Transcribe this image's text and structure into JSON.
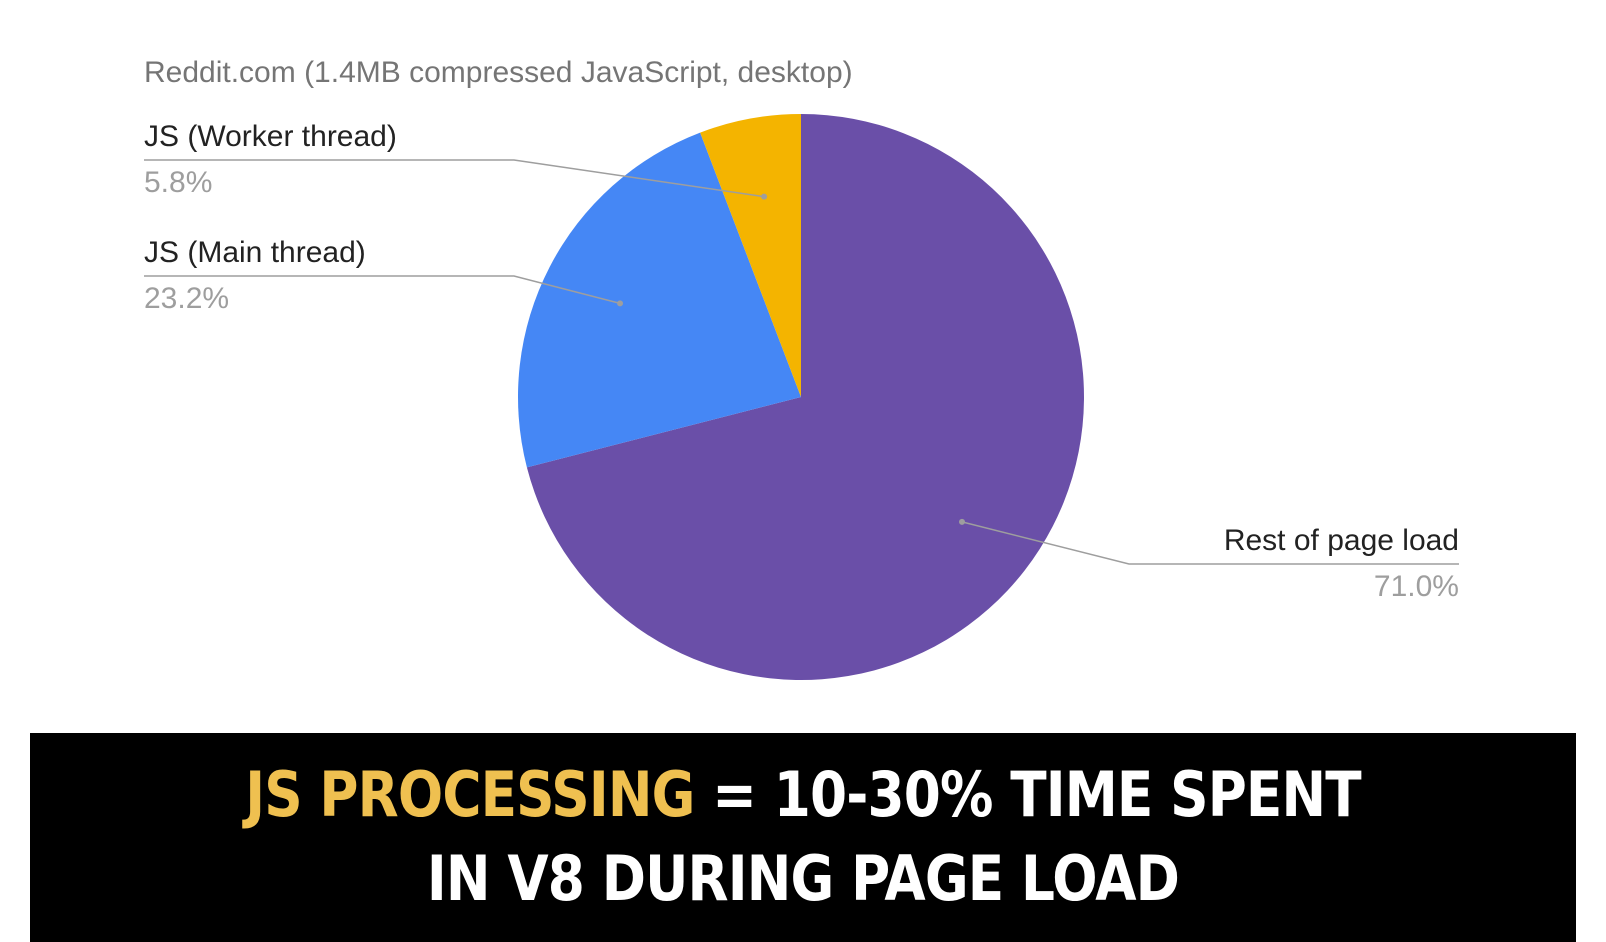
{
  "chart_data": {
    "type": "pie",
    "title": "Reddit.com (1.4MB compressed JavaScript, desktop)",
    "slices": [
      {
        "label": "Rest of page load",
        "value": 71.0,
        "value_label": "71.0%",
        "color": "#6a4fa8"
      },
      {
        "label": "JS (Main thread)",
        "value": 23.2,
        "value_label": "23.2%",
        "color": "#4587f5"
      },
      {
        "label": "JS (Worker thread)",
        "value": 5.8,
        "value_label": "5.8%",
        "color": "#f4b400"
      }
    ],
    "start_angle_deg": 0,
    "direction": "clockwise",
    "legend": "labels-with-leader-lines"
  },
  "banner": {
    "highlight": "JS PROCESSING",
    "line1_rest": " = 10-30% TIME SPENT",
    "line2": "IN V8 DURING PAGE LOAD",
    "highlight_color": "#efc050"
  }
}
